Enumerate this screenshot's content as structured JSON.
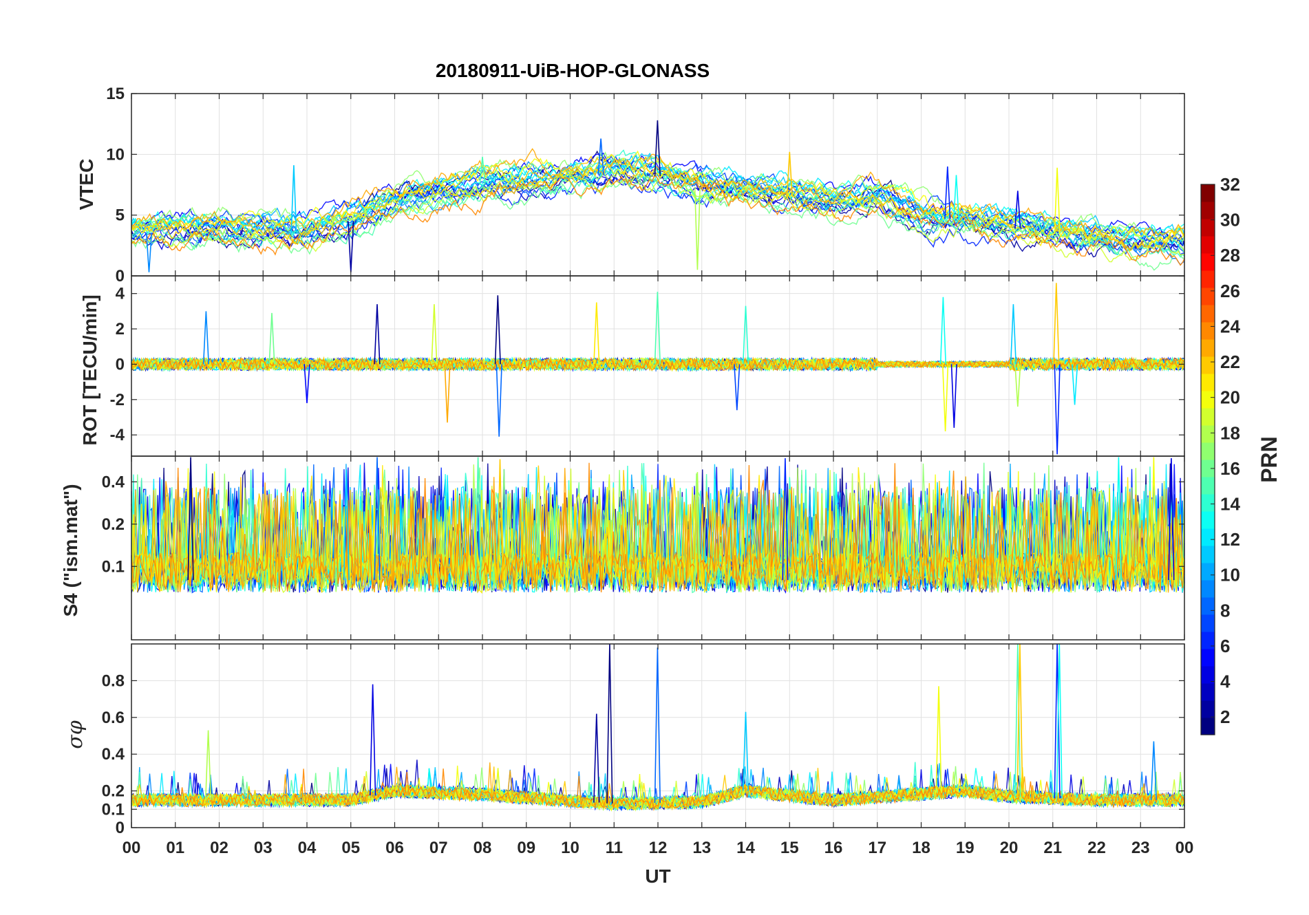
{
  "chart_data": {
    "type": "line",
    "title": "20180911-UiB-HOP-GLONASS",
    "xlabel": "UT",
    "x_range_hours": [
      0,
      24
    ],
    "x_ticks": [
      "00",
      "01",
      "02",
      "03",
      "04",
      "05",
      "06",
      "07",
      "08",
      "09",
      "10",
      "11",
      "12",
      "13",
      "14",
      "15",
      "16",
      "17",
      "18",
      "19",
      "20",
      "21",
      "22",
      "23",
      "00"
    ],
    "panels": [
      {
        "id": "vtec",
        "ylabel": "VTEC",
        "ylim": [
          0,
          15
        ],
        "ytick_values": [
          0,
          5,
          10,
          15
        ],
        "ytick_labels": [
          "0",
          "5",
          "10",
          "15"
        ],
        "baseline_profile": [
          [
            0,
            3.5
          ],
          [
            2,
            3.8
          ],
          [
            4,
            3.4
          ],
          [
            5,
            4.5
          ],
          [
            6,
            6
          ],
          [
            8,
            7.5
          ],
          [
            10,
            8
          ],
          [
            11,
            8.5
          ],
          [
            12,
            8.2
          ],
          [
            13,
            7.2
          ],
          [
            14,
            7
          ],
          [
            15,
            6.5
          ],
          [
            16,
            6
          ],
          [
            17,
            6.5
          ],
          [
            18,
            5
          ],
          [
            20,
            4
          ],
          [
            21,
            3.5
          ],
          [
            22,
            3
          ],
          [
            24,
            2.5
          ]
        ],
        "spikes": [
          [
            11.99,
            12.8
          ],
          [
            10.7,
            11.3
          ],
          [
            8.0,
            9.8
          ],
          [
            15.0,
            10.2
          ],
          [
            18.6,
            9.0
          ],
          [
            18.8,
            8.3
          ],
          [
            21.1,
            8.9
          ],
          [
            20.2,
            7.0
          ],
          [
            3.7,
            9.1
          ],
          [
            12.9,
            0.5
          ],
          [
            5.0,
            0.3
          ],
          [
            0.4,
            0.3
          ]
        ],
        "noise": 0.8
      },
      {
        "id": "rot",
        "ylabel": "ROT [TECU/min]",
        "ylim": [
          -5.2,
          5
        ],
        "ytick_values": [
          -4,
          -2,
          0,
          2,
          4
        ],
        "ytick_labels": [
          "-4",
          "-2",
          "0",
          "2",
          "4"
        ],
        "baseline_profile": [
          [
            0,
            0
          ],
          [
            24,
            0
          ]
        ],
        "spikes": [
          [
            8.35,
            3.9
          ],
          [
            8.38,
            -4.1
          ],
          [
            11.99,
            4.1
          ],
          [
            21.08,
            4.6
          ],
          [
            21.1,
            -5.1
          ],
          [
            18.5,
            3.8
          ],
          [
            18.55,
            -3.8
          ],
          [
            18.75,
            -3.6
          ],
          [
            20.1,
            3.4
          ],
          [
            20.2,
            -2.4
          ],
          [
            5.6,
            3.4
          ],
          [
            1.7,
            3.0
          ],
          [
            3.2,
            2.9
          ],
          [
            7.2,
            -3.3
          ],
          [
            13.8,
            -2.6
          ],
          [
            14.0,
            3.3
          ],
          [
            10.6,
            3.5
          ],
          [
            4.0,
            -2.2
          ],
          [
            21.5,
            -2.3
          ],
          [
            6.9,
            3.4
          ]
        ],
        "noise": 0.35
      },
      {
        "id": "s4",
        "ylabel": "S4 (\"ism.mat\")",
        "ylim": [
          0.03,
          0.61
        ],
        "ytick_values": [
          0.1,
          0.2,
          0.4
        ],
        "ytick_labels": [
          "0.1",
          "0.2",
          "0.4"
        ],
        "y_scale": "log",
        "baseline_profile": [
          [
            0,
            0.08
          ],
          [
            24,
            0.08
          ]
        ],
        "spikes": [
          [
            1.35,
            0.6
          ],
          [
            5.6,
            0.6
          ],
          [
            7.9,
            0.6
          ],
          [
            8.4,
            0.58
          ],
          [
            14.9,
            0.59
          ],
          [
            22.5,
            0.6
          ],
          [
            23.3,
            0.6
          ],
          [
            23.7,
            0.59
          ],
          [
            4.9,
            0.49
          ],
          [
            12.9,
            0.47
          ]
        ],
        "noise": 0.3
      },
      {
        "id": "sigma",
        "ylabel": "σφ",
        "ylim": [
          0,
          1
        ],
        "ytick_values": [
          0,
          0.1,
          0.2,
          0.4,
          0.6,
          0.8
        ],
        "ytick_labels": [
          "0",
          "0.1",
          "0.2",
          "0.4",
          "0.6",
          "0.8"
        ],
        "baseline_profile": [
          [
            0,
            0.15
          ],
          [
            5,
            0.15
          ],
          [
            6,
            0.2
          ],
          [
            8,
            0.18
          ],
          [
            11,
            0.13
          ],
          [
            13,
            0.14
          ],
          [
            14,
            0.2
          ],
          [
            16,
            0.15
          ],
          [
            19,
            0.2
          ],
          [
            20,
            0.17
          ],
          [
            22,
            0.15
          ],
          [
            24,
            0.15
          ]
        ],
        "spikes": [
          [
            10.9,
            1.0
          ],
          [
            11.99,
            0.98
          ],
          [
            20.2,
            1.0
          ],
          [
            20.25,
            1.0
          ],
          [
            21.1,
            1.0
          ],
          [
            21.15,
            1.0
          ],
          [
            18.4,
            0.77
          ],
          [
            5.5,
            0.78
          ],
          [
            14.0,
            0.63
          ],
          [
            1.75,
            0.53
          ],
          [
            10.6,
            0.62
          ],
          [
            23.3,
            0.47
          ]
        ],
        "noise": 0.06
      }
    ],
    "series_count": 24,
    "colorbar": {
      "label": "PRN",
      "range": [
        1,
        32
      ],
      "tick_values": [
        2,
        4,
        6,
        8,
        10,
        12,
        14,
        16,
        18,
        20,
        22,
        24,
        26,
        28,
        30,
        32
      ],
      "tick_labels": [
        "2",
        "4",
        "6",
        "8",
        "10",
        "12",
        "14",
        "16",
        "18",
        "20",
        "22",
        "24",
        "26",
        "28",
        "30",
        "32"
      ],
      "colormap": "jet",
      "levels": 32
    }
  }
}
